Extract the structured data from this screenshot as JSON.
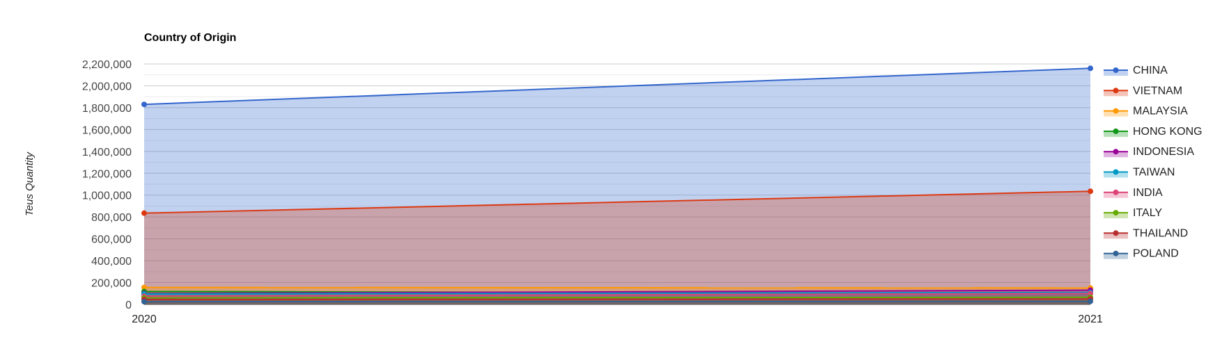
{
  "chart_data": {
    "type": "area",
    "title": "Country of Origin",
    "xlabel": "",
    "ylabel": "Teus Quantity",
    "x": [
      "2020",
      "2021"
    ],
    "ylim": [
      0,
      2200000
    ],
    "yticks": [
      0,
      200000,
      400000,
      600000,
      800000,
      1000000,
      1200000,
      1400000,
      1600000,
      1800000,
      2000000,
      2200000
    ],
    "ytick_labels": [
      "0",
      "200,000",
      "400,000",
      "600,000",
      "800,000",
      "1,000,000",
      "1,200,000",
      "1,400,000",
      "1,600,000",
      "1,800,000",
      "2,000,000",
      "2,200,000"
    ],
    "grid": true,
    "legend_position": "right",
    "series": [
      {
        "name": "CHINA",
        "color": "#3366cc",
        "values": [
          1830000,
          2160000
        ]
      },
      {
        "name": "VIETNAM",
        "color": "#dc3912",
        "values": [
          835000,
          1035000
        ]
      },
      {
        "name": "MALAYSIA",
        "color": "#ff9900",
        "values": [
          155000,
          150000
        ]
      },
      {
        "name": "HONG KONG",
        "color": "#109618",
        "values": [
          118000,
          100000
        ]
      },
      {
        "name": "INDONESIA",
        "color": "#990099",
        "values": [
          100000,
          130000
        ]
      },
      {
        "name": "TAIWAN",
        "color": "#0099c6",
        "values": [
          95000,
          110000
        ]
      },
      {
        "name": "INDIA",
        "color": "#dd4477",
        "values": [
          75000,
          100000
        ]
      },
      {
        "name": "ITALY",
        "color": "#66aa00",
        "values": [
          60000,
          65000
        ]
      },
      {
        "name": "THAILAND",
        "color": "#b82e2e",
        "values": [
          45000,
          50000
        ]
      },
      {
        "name": "POLAND",
        "color": "#316395",
        "values": [
          25000,
          28000
        ]
      }
    ]
  }
}
